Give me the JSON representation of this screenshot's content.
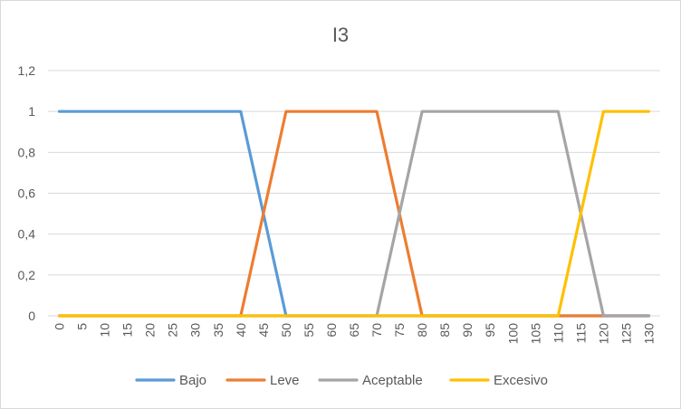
{
  "chart_data": {
    "type": "line",
    "title": "I3",
    "xlabel": "",
    "ylabel": "",
    "x": [
      0,
      5,
      10,
      15,
      20,
      25,
      30,
      35,
      40,
      45,
      50,
      55,
      60,
      65,
      70,
      75,
      80,
      85,
      90,
      95,
      100,
      105,
      110,
      115,
      120,
      125,
      130
    ],
    "x_tick_labels": [
      "0",
      "5",
      "10",
      "15",
      "20",
      "25",
      "30",
      "35",
      "40",
      "45",
      "50",
      "55",
      "60",
      "65",
      "70",
      "75",
      "80",
      "85",
      "90",
      "95",
      "100",
      "105",
      "110",
      "115",
      "120",
      "125",
      "130"
    ],
    "ylim": [
      0,
      1.2
    ],
    "y_ticks": [
      0,
      0.2,
      0.4,
      0.6,
      0.8,
      1,
      1.2
    ],
    "y_tick_labels": [
      "0",
      "0,2",
      "0,4",
      "0,6",
      "0,8",
      "1",
      "1,2"
    ],
    "grid": "horizontal",
    "legend_position": "bottom",
    "series": [
      {
        "name": "Bajo",
        "color": "#5b9bd5",
        "values": [
          1,
          1,
          1,
          1,
          1,
          1,
          1,
          1,
          1,
          0.5,
          0,
          0,
          0,
          0,
          0,
          0,
          0,
          0,
          0,
          0,
          0,
          0,
          0,
          0,
          0,
          0,
          0
        ]
      },
      {
        "name": "Leve",
        "color": "#ed7d31",
        "values": [
          0,
          0,
          0,
          0,
          0,
          0,
          0,
          0,
          0,
          0.5,
          1,
          1,
          1,
          1,
          1,
          0.5,
          0,
          0,
          0,
          0,
          0,
          0,
          0,
          0,
          0,
          0,
          0
        ]
      },
      {
        "name": "Aceptable",
        "color": "#a5a5a5",
        "values": [
          0,
          0,
          0,
          0,
          0,
          0,
          0,
          0,
          0,
          0,
          0,
          0,
          0,
          0,
          0,
          0.5,
          1,
          1,
          1,
          1,
          1,
          1,
          1,
          0.5,
          0,
          0,
          0
        ]
      },
      {
        "name": "Excesivo",
        "color": "#ffc000",
        "values": [
          0,
          0,
          0,
          0,
          0,
          0,
          0,
          0,
          0,
          0,
          0,
          0,
          0,
          0,
          0,
          0,
          0,
          0,
          0,
          0,
          0,
          0,
          0,
          0.5,
          1,
          1,
          1
        ]
      }
    ]
  }
}
